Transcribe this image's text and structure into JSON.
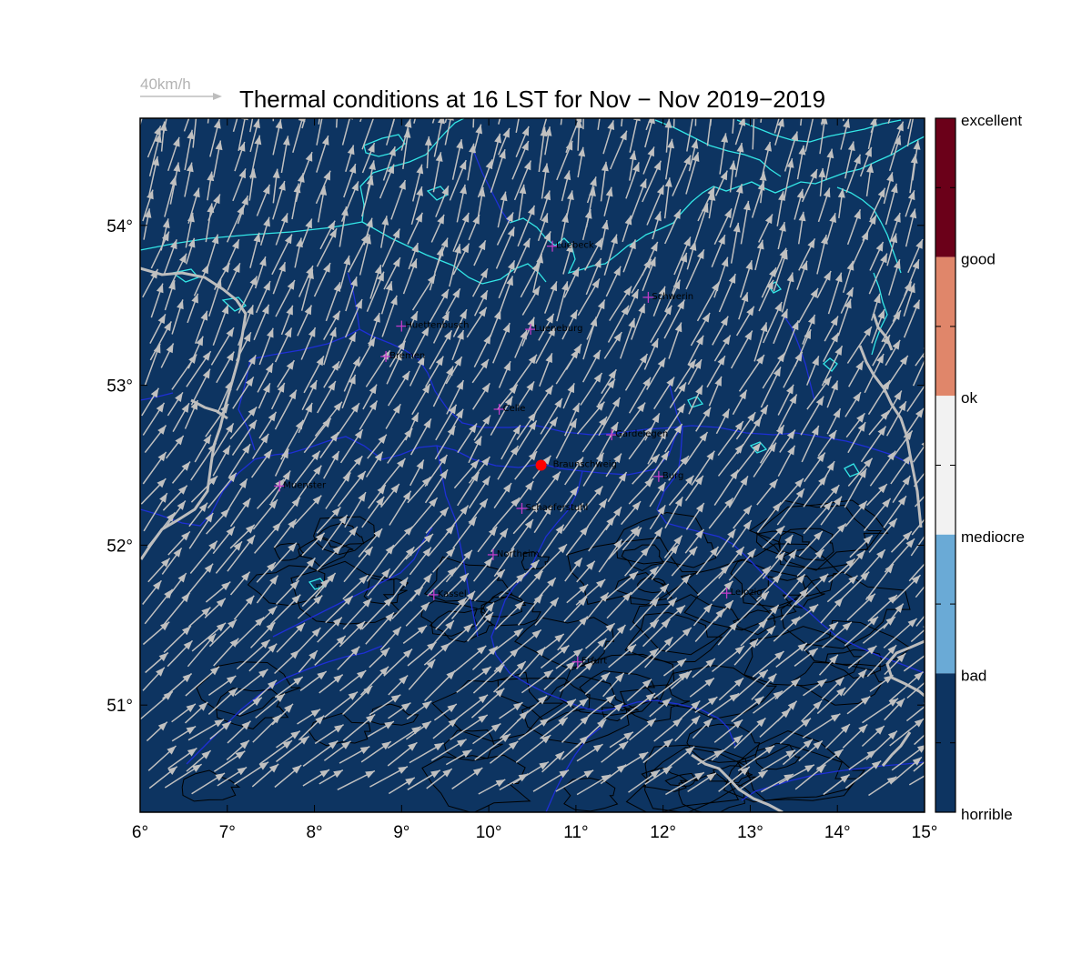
{
  "title": "Thermal conditions at 16 LST for Nov − Nov  2019−2019",
  "wind_scale": {
    "label": "40km/h"
  },
  "colors": {
    "background": "#0d3461",
    "coast": "#33e6e6",
    "borders": "#1e2fd6",
    "rivers": "#bdbdbd",
    "terrain": "#000000",
    "arrows": "#c0c0c0",
    "city_marker": "#c03cc8",
    "selected_marker": "#ff0000"
  },
  "map": {
    "lon_range": [
      6,
      15
    ],
    "lat_range": [
      50.33,
      54.67
    ],
    "x_ticks": [
      "6°",
      "7°",
      "8°",
      "9°",
      "10°",
      "11°",
      "12°",
      "13°",
      "14°",
      "15°"
    ],
    "y_ticks": [
      {
        "lat": 54,
        "label": "54°"
      },
      {
        "lat": 53,
        "label": "53°"
      },
      {
        "lat": 52,
        "label": "52°"
      },
      {
        "lat": 51,
        "label": "51°"
      }
    ]
  },
  "cities": [
    {
      "name": "Luebeck",
      "lon": 10.73,
      "lat": 53.87
    },
    {
      "name": "Schwerin",
      "lon": 11.83,
      "lat": 53.55
    },
    {
      "name": "Huettenbusch",
      "lon": 9.0,
      "lat": 53.37
    },
    {
      "name": "Lueneburg",
      "lon": 10.48,
      "lat": 53.35
    },
    {
      "name": "Bremen",
      "lon": 8.82,
      "lat": 53.18
    },
    {
      "name": "Celle",
      "lon": 10.12,
      "lat": 52.85
    },
    {
      "name": "Gardelegen",
      "lon": 11.41,
      "lat": 52.69
    },
    {
      "name": "Braunschweig",
      "lon": 10.6,
      "lat": 52.5,
      "selected": true
    },
    {
      "name": "Burg",
      "lon": 11.95,
      "lat": 52.43
    },
    {
      "name": "Muenster",
      "lon": 7.6,
      "lat": 52.37
    },
    {
      "name": "Schaeferstuhl",
      "lon": 10.38,
      "lat": 52.23
    },
    {
      "name": "Northeim",
      "lon": 10.05,
      "lat": 51.94
    },
    {
      "name": "Kassel",
      "lon": 9.37,
      "lat": 51.69
    },
    {
      "name": "Leipzig",
      "lon": 12.73,
      "lat": 51.7
    },
    {
      "name": "Erfurt",
      "lon": 11.02,
      "lat": 51.27
    }
  ],
  "colorbar": {
    "classes": [
      {
        "label": "excellent",
        "color": "#6b0019"
      },
      {
        "label": "good",
        "color": "#e0866a"
      },
      {
        "label": "ok",
        "color": "#f2f2f2"
      },
      {
        "label": "mediocre",
        "color": "#6aaad6"
      },
      {
        "label": "bad",
        "color": "#0d3461"
      },
      {
        "label": "horrible",
        "color": "#0d3461"
      }
    ]
  }
}
